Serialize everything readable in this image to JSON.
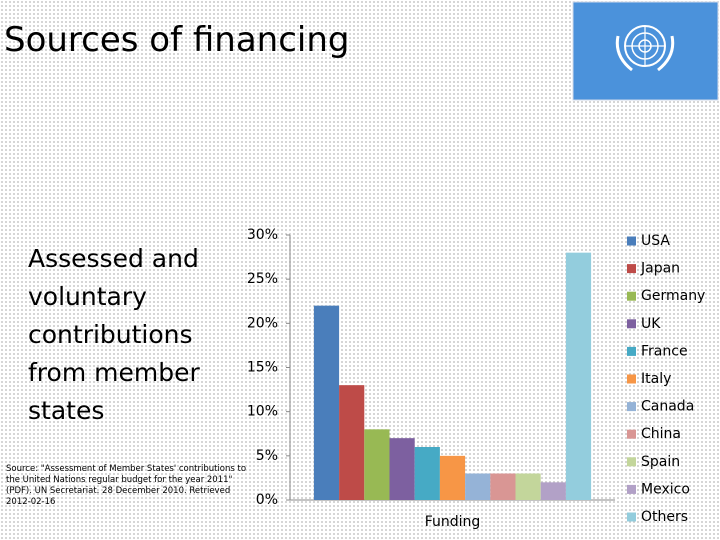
{
  "slide": {
    "title": "Sources of financing",
    "text": "Assessed and voluntary contributions from member states",
    "source": "Source: \"Assessment of Member States' contributions to the United Nations regular budget for the year 2011\" (PDF). UN Secretariat. 28 December 2010. Retrieved 2012-02-16"
  },
  "chart_data": {
    "type": "bar",
    "categories": [
      "Funding"
    ],
    "series": [
      {
        "name": "USA",
        "color": "#4a7ebb",
        "values": [
          22
        ]
      },
      {
        "name": "Japan",
        "color": "#be4b48",
        "values": [
          13
        ]
      },
      {
        "name": "Germany",
        "color": "#98b954",
        "values": [
          8
        ]
      },
      {
        "name": "UK",
        "color": "#7d60a0",
        "values": [
          7
        ]
      },
      {
        "name": "France",
        "color": "#46aac5",
        "values": [
          6
        ]
      },
      {
        "name": "Italy",
        "color": "#f79646",
        "values": [
          5
        ]
      },
      {
        "name": "Canada",
        "color": "#95b3d7",
        "values": [
          3
        ]
      },
      {
        "name": "China",
        "color": "#d99694",
        "values": [
          3
        ]
      },
      {
        "name": "Spain",
        "color": "#c3d69b",
        "values": [
          3
        ]
      },
      {
        "name": "Mexico",
        "color": "#b2a1c7",
        "values": [
          2
        ]
      },
      {
        "name": "Others",
        "color": "#93cddd",
        "values": [
          28
        ]
      }
    ],
    "ylim": [
      0,
      30
    ],
    "yticks": [
      {
        "value": 0,
        "label": "0%"
      },
      {
        "value": 5,
        "label": "5%"
      },
      {
        "value": 10,
        "label": "10%"
      },
      {
        "value": 15,
        "label": "15%"
      },
      {
        "value": 20,
        "label": "20%"
      },
      {
        "value": 25,
        "label": "25%"
      },
      {
        "value": 30,
        "label": "30%"
      }
    ],
    "grid": false,
    "legend": "right"
  }
}
